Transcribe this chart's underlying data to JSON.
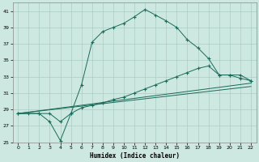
{
  "xlabel": "Humidex (Indice chaleur)",
  "bg_color": "#cce8e0",
  "grid_color": "#aaccc4",
  "line_color": "#1a6b5a",
  "xlim": [
    -0.5,
    22.5
  ],
  "ylim": [
    25,
    42
  ],
  "xticks": [
    0,
    1,
    2,
    3,
    4,
    5,
    6,
    7,
    8,
    9,
    10,
    11,
    12,
    13,
    14,
    15,
    16,
    17,
    18,
    19,
    20,
    21,
    22
  ],
  "yticks": [
    25,
    27,
    29,
    31,
    33,
    35,
    37,
    39,
    41
  ],
  "line1_x": [
    0,
    1,
    2,
    3,
    4,
    5,
    6,
    7,
    8,
    9,
    10,
    11,
    12,
    13,
    14,
    15,
    16,
    17,
    18,
    19,
    20,
    21,
    22
  ],
  "line1_y": [
    28.5,
    28.5,
    28.5,
    27.5,
    25.2,
    28.5,
    32.0,
    37.2,
    38.5,
    39.0,
    39.5,
    40.3,
    41.2,
    40.5,
    39.8,
    39.0,
    37.5,
    36.5,
    35.2,
    33.2,
    33.2,
    32.8,
    32.5
  ],
  "line2_x": [
    0,
    2,
    3,
    4,
    5,
    6,
    7,
    8,
    9,
    10,
    11,
    12,
    13,
    14,
    15,
    16,
    17,
    18,
    19,
    20,
    21,
    22
  ],
  "line2_y": [
    28.5,
    28.5,
    28.5,
    27.5,
    28.5,
    29.2,
    29.5,
    29.8,
    30.2,
    30.5,
    31.0,
    31.5,
    32.0,
    32.5,
    33.0,
    33.5,
    34.0,
    34.3,
    33.2,
    33.2,
    33.2,
    32.5
  ],
  "line3_x": [
    0,
    22
  ],
  "line3_y": [
    28.5,
    32.2
  ],
  "line4_x": [
    0,
    22
  ],
  "line4_y": [
    28.5,
    31.8
  ]
}
